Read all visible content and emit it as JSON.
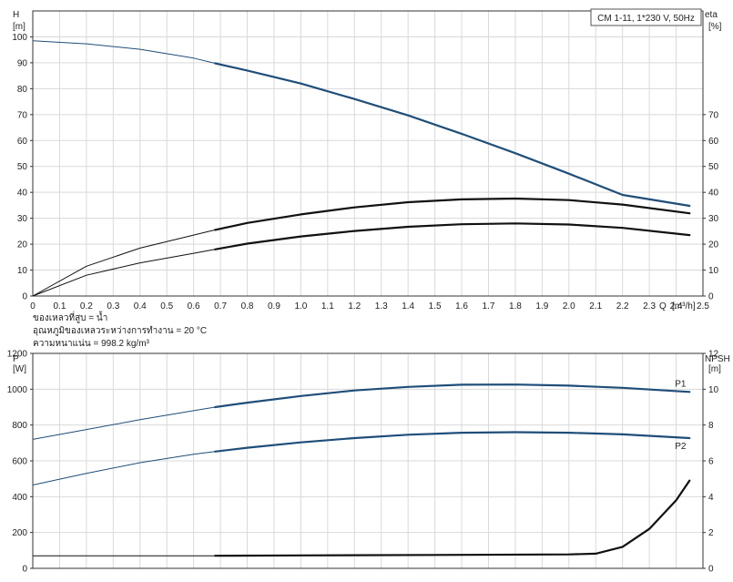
{
  "chart_data": [
    {
      "type": "line",
      "legend_box": "CM 1-11, 1*230 V, 50Hz",
      "legend_position": "top-right",
      "grid": true,
      "xlabel": "Q [m³/h]",
      "x_axis_label": "Q",
      "x_axis_unit": "[m³/h]",
      "xlim": [
        0,
        2.5
      ],
      "x_ticks": [
        "0",
        "0.1",
        "0.2",
        "0.3",
        "0.4",
        "0.5",
        "0.6",
        "0.7",
        "0.8",
        "0.9",
        "1.0",
        "1.1",
        "1.2",
        "1.3",
        "1.4",
        "1.5",
        "1.6",
        "1.7",
        "1.8",
        "1.9",
        "2.0",
        "2.1",
        "2.2",
        "2.3",
        "2.4",
        "2.5"
      ],
      "y_left": {
        "label": "H",
        "unit": "[m]",
        "ylim": [
          0,
          110
        ],
        "ticks": [
          "0",
          "10",
          "20",
          "30",
          "40",
          "50",
          "60",
          "70",
          "80",
          "90",
          "100"
        ]
      },
      "y_right": {
        "label": "eta",
        "unit": "[%]",
        "ylim": [
          0,
          110
        ],
        "ticks": [
          "0",
          "10",
          "20",
          "30",
          "40",
          "50",
          "60",
          "70"
        ]
      },
      "series": [
        {
          "axis": "left",
          "color": "#1f4e79",
          "role": "head",
          "x": [
            0,
            0.2,
            0.4,
            0.6,
            0.68,
            0.8,
            1.0,
            1.2,
            1.4,
            1.6,
            1.8,
            2.0,
            2.2,
            2.45
          ],
          "y": [
            98.5,
            97.3,
            95.2,
            91.8,
            89.8,
            87.0,
            82.0,
            76.0,
            69.7,
            62.6,
            55.1,
            47.2,
            39.0,
            34.8
          ],
          "operating_range": [
            0.68,
            2.45
          ]
        },
        {
          "axis": "right",
          "color": "#111111",
          "role": "efficiency-upper",
          "x": [
            0,
            0.2,
            0.4,
            0.6,
            0.68,
            0.8,
            1.0,
            1.2,
            1.4,
            1.6,
            1.8,
            2.0,
            2.2,
            2.45
          ],
          "y": [
            0,
            11.5,
            18.5,
            23.5,
            25.5,
            28.2,
            31.5,
            34.2,
            36.2,
            37.3,
            37.6,
            37.0,
            35.3,
            31.9
          ],
          "operating_range": [
            0.68,
            2.45
          ]
        },
        {
          "axis": "right",
          "color": "#111111",
          "role": "efficiency-lower",
          "x": [
            0,
            0.2,
            0.4,
            0.6,
            0.68,
            0.8,
            1.0,
            1.2,
            1.4,
            1.6,
            1.8,
            2.0,
            2.2,
            2.45
          ],
          "y": [
            0,
            8.0,
            12.8,
            16.5,
            18.0,
            20.2,
            23.0,
            25.1,
            26.7,
            27.7,
            28.0,
            27.6,
            26.3,
            23.5
          ],
          "operating_range": [
            0.68,
            2.45
          ]
        }
      ]
    },
    {
      "type": "line",
      "grid": true,
      "xlim": [
        0,
        2.5
      ],
      "y_left": {
        "label": "P",
        "unit": "[W]",
        "ylim": [
          0,
          1200
        ],
        "ticks": [
          "0",
          "200",
          "400",
          "600",
          "800",
          "1000",
          "1200"
        ]
      },
      "y_right": {
        "label": "NPSH",
        "unit": "[m]",
        "ylim": [
          0,
          12
        ],
        "ticks": [
          "0",
          "2",
          "4",
          "6",
          "8",
          "10",
          "12"
        ]
      },
      "series": [
        {
          "name": "P1",
          "axis": "left",
          "color": "#1f4e79",
          "x": [
            0,
            0.2,
            0.4,
            0.6,
            0.68,
            0.8,
            1.0,
            1.2,
            1.4,
            1.6,
            1.8,
            2.0,
            2.2,
            2.45
          ],
          "y": [
            720,
            775,
            830,
            880,
            900,
            925,
            962,
            993,
            1013,
            1025,
            1026,
            1020,
            1008,
            985
          ],
          "operating_range": [
            0.68,
            2.45
          ]
        },
        {
          "name": "P2",
          "axis": "left",
          "color": "#1f4e79",
          "x": [
            0,
            0.2,
            0.4,
            0.6,
            0.68,
            0.8,
            1.0,
            1.2,
            1.4,
            1.6,
            1.8,
            2.0,
            2.2,
            2.45
          ],
          "y": [
            465,
            530,
            590,
            637,
            652,
            673,
            703,
            727,
            746,
            757,
            760,
            757,
            748,
            727
          ],
          "operating_range": [
            0.68,
            2.45
          ]
        },
        {
          "axis": "right",
          "color": "#111111",
          "role": "npsh",
          "x": [
            0,
            0.68,
            1.0,
            1.5,
            2.0,
            2.1,
            2.2,
            2.3,
            2.4,
            2.45
          ],
          "y": [
            0.7,
            0.7,
            0.72,
            0.75,
            0.78,
            0.82,
            1.2,
            2.2,
            3.8,
            4.9
          ],
          "operating_range": [
            0.68,
            2.45
          ]
        }
      ]
    }
  ],
  "notes": [
    "ของเหลวที่สูบ = น้ำ",
    "อุณหภูมิของเหลวระหว่างการทำงาน = 20 °C",
    "ความหนาแน่น = 998.2 kg/m³"
  ]
}
